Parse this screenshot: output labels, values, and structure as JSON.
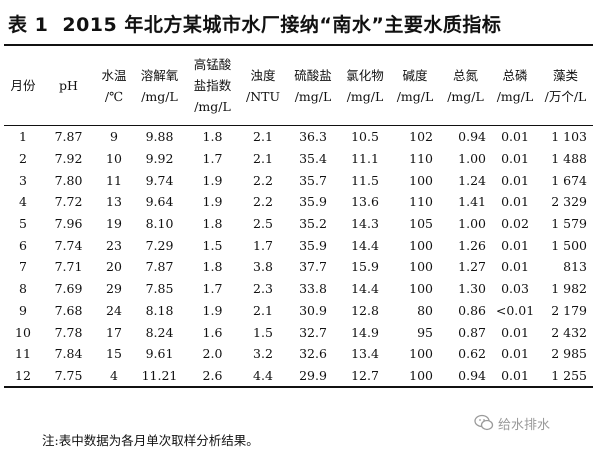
{
  "title": {
    "label": "表 1",
    "text": "2015 年北方某城市水厂接纳“南水”主要水质指标"
  },
  "columns": [
    {
      "line1": "月份",
      "line2": "",
      "line3": ""
    },
    {
      "line1": "pH",
      "line2": "",
      "line3": ""
    },
    {
      "line1": "水温",
      "line2": "/℃",
      "line3": ""
    },
    {
      "line1": "溶解氧",
      "line2": "/mg/L",
      "line3": ""
    },
    {
      "line1": "高锰酸",
      "line2": "盐指数",
      "line3": "/mg/L"
    },
    {
      "line1": "浊度",
      "line2": "/NTU",
      "line3": ""
    },
    {
      "line1": "硫酸盐",
      "line2": "/mg/L",
      "line3": ""
    },
    {
      "line1": "氯化物",
      "line2": "/mg/L",
      "line3": ""
    },
    {
      "line1": "碱度",
      "line2": "/mg/L",
      "line3": ""
    },
    {
      "line1": "总氮",
      "line2": "/mg/L",
      "line3": ""
    },
    {
      "line1": "总磷",
      "line2": "/mg/L",
      "line3": ""
    },
    {
      "line1": "藻类",
      "line2": "/万个/L",
      "line3": ""
    }
  ],
  "rows": [
    [
      "1",
      "7.87",
      "9",
      "9.88",
      "1.8",
      "2.1",
      "36.3",
      "10.5",
      "102",
      "0.94",
      "0.01",
      "1 103"
    ],
    [
      "2",
      "7.92",
      "10",
      "9.92",
      "1.7",
      "2.1",
      "35.4",
      "11.1",
      "110",
      "1.00",
      "0.01",
      "1 488"
    ],
    [
      "3",
      "7.80",
      "11",
      "9.74",
      "1.9",
      "2.2",
      "35.7",
      "11.5",
      "100",
      "1.24",
      "0.01",
      "1 674"
    ],
    [
      "4",
      "7.72",
      "13",
      "9.64",
      "1.9",
      "2.2",
      "35.9",
      "13.6",
      "110",
      "1.41",
      "0.01",
      "2 329"
    ],
    [
      "5",
      "7.96",
      "19",
      "8.10",
      "1.8",
      "2.5",
      "35.2",
      "14.3",
      "105",
      "1.00",
      "0.02",
      "1 579"
    ],
    [
      "6",
      "7.74",
      "23",
      "7.29",
      "1.5",
      "1.7",
      "35.9",
      "14.4",
      "100",
      "1.26",
      "0.01",
      "1 500"
    ],
    [
      "7",
      "7.71",
      "20",
      "7.87",
      "1.8",
      "3.8",
      "37.7",
      "15.9",
      "100",
      "1.27",
      "0.01",
      "813"
    ],
    [
      "8",
      "7.69",
      "29",
      "7.85",
      "1.7",
      "2.3",
      "33.8",
      "14.4",
      "100",
      "1.30",
      "0.03",
      "1 982"
    ],
    [
      "9",
      "7.68",
      "24",
      "8.18",
      "1.9",
      "2.1",
      "30.9",
      "12.8",
      "80",
      "0.86",
      "<0.01",
      "2 179"
    ],
    [
      "10",
      "7.78",
      "17",
      "8.24",
      "1.6",
      "1.5",
      "32.7",
      "14.9",
      "95",
      "0.87",
      "0.01",
      "2 432"
    ],
    [
      "11",
      "7.84",
      "15",
      "9.61",
      "2.0",
      "3.2",
      "32.6",
      "13.4",
      "100",
      "0.62",
      "0.01",
      "2 985"
    ],
    [
      "12",
      "7.75",
      "4",
      "11.21",
      "2.6",
      "4.4",
      "29.9",
      "12.7",
      "100",
      "0.94",
      "0.01",
      "1 255"
    ]
  ],
  "note": "注:表中数据为各月单次取样分析结果。",
  "watermark": {
    "icon": "wechat-icon",
    "text": "给水排水"
  }
}
